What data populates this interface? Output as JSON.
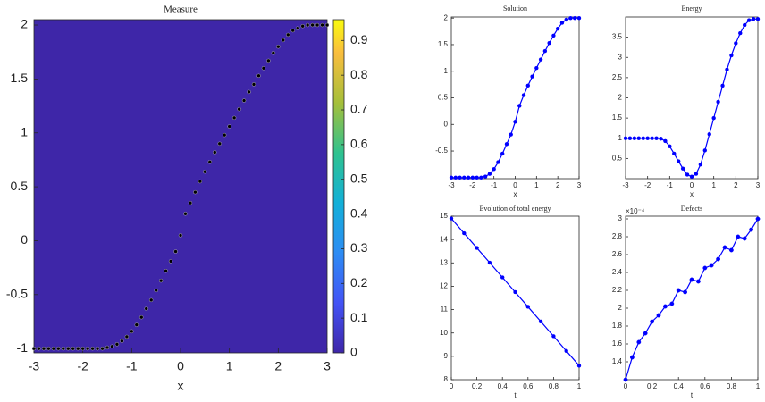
{
  "chart_data": [
    {
      "type": "scatter",
      "title": "Measure",
      "xlabel": "x",
      "background": "#3e26a8",
      "x": [
        -3.0,
        -2.9,
        -2.8,
        -2.7,
        -2.6,
        -2.5,
        -2.4,
        -2.3,
        -2.2,
        -2.1,
        -2.0,
        -1.9,
        -1.8,
        -1.7,
        -1.6,
        -1.5,
        -1.4,
        -1.3,
        -1.2,
        -1.1,
        -1.0,
        -0.9,
        -0.8,
        -0.7,
        -0.6,
        -0.5,
        -0.4,
        -0.3,
        -0.2,
        -0.1,
        0.0,
        0.1,
        0.2,
        0.3,
        0.4,
        0.5,
        0.6,
        0.7,
        0.8,
        0.9,
        1.0,
        1.1,
        1.2,
        1.3,
        1.4,
        1.5,
        1.6,
        1.7,
        1.8,
        1.9,
        2.0,
        2.1,
        2.2,
        2.3,
        2.4,
        2.5,
        2.6,
        2.7,
        2.8,
        2.9,
        3.0
      ],
      "series": [
        {
          "color": "#000000",
          "values": [
            -1,
            -1,
            -1,
            -1,
            -1,
            -1,
            -1,
            -1,
            -1,
            -1,
            -1,
            -1,
            -1,
            -1,
            -1,
            -0.99,
            -0.98,
            -0.96,
            -0.93,
            -0.89,
            -0.84,
            -0.78,
            -0.71,
            -0.63,
            -0.55,
            -0.46,
            -0.37,
            -0.28,
            -0.19,
            -0.1,
            0.05,
            0.25,
            0.35,
            0.45,
            0.55,
            0.64,
            0.73,
            0.82,
            0.9,
            0.98,
            1.06,
            1.14,
            1.22,
            1.3,
            1.38,
            1.45,
            1.53,
            1.6,
            1.67,
            1.74,
            1.8,
            1.86,
            1.91,
            1.95,
            1.97,
            1.99,
            2.0,
            2.0,
            2.0,
            2.0,
            2.0
          ]
        }
      ],
      "xlim": [
        -3,
        3
      ],
      "ylim": [
        -1.04,
        2.05
      ],
      "xticks": [
        -3,
        -2,
        -1,
        0,
        1,
        2,
        3
      ],
      "yticks": [
        -1,
        -0.5,
        0,
        0.5,
        1,
        1.5,
        2
      ],
      "colorbar": {
        "lim": [
          0,
          0.96
        ],
        "ticks": [
          0,
          0.1,
          0.2,
          0.3,
          0.4,
          0.5,
          0.6,
          0.7,
          0.8,
          0.9
        ]
      }
    },
    {
      "type": "line",
      "title": "Solution",
      "xlabel": "x",
      "x": [
        -3.0,
        -2.8,
        -2.6,
        -2.4,
        -2.2,
        -2.0,
        -1.8,
        -1.6,
        -1.4,
        -1.2,
        -1.0,
        -0.8,
        -0.6,
        -0.4,
        -0.2,
        0.0,
        0.2,
        0.4,
        0.6,
        0.8,
        1.0,
        1.2,
        1.4,
        1.6,
        1.8,
        2.0,
        2.2,
        2.4,
        2.6,
        2.8,
        3.0
      ],
      "series": [
        {
          "color": "#0000ff",
          "values": [
            -1,
            -1,
            -1,
            -1,
            -1,
            -1,
            -1,
            -1,
            -0.98,
            -0.93,
            -0.84,
            -0.71,
            -0.55,
            -0.37,
            -0.19,
            0.05,
            0.35,
            0.55,
            0.73,
            0.9,
            1.06,
            1.22,
            1.38,
            1.53,
            1.67,
            1.8,
            1.91,
            1.97,
            2.0,
            2.0,
            2.0
          ]
        }
      ],
      "xlim": [
        -3,
        3
      ],
      "ylim": [
        -1.02,
        2.02
      ],
      "xticks": [
        -3,
        -2,
        -1,
        0,
        1,
        2,
        3
      ],
      "yticks": [
        -0.5,
        0,
        0.5,
        1,
        1.5,
        2
      ]
    },
    {
      "type": "line",
      "title": "Energy",
      "xlabel": "x",
      "x": [
        -3.0,
        -2.8,
        -2.6,
        -2.4,
        -2.2,
        -2.0,
        -1.8,
        -1.6,
        -1.4,
        -1.2,
        -1.0,
        -0.8,
        -0.6,
        -0.4,
        -0.2,
        0.0,
        0.2,
        0.4,
        0.6,
        0.8,
        1.0,
        1.2,
        1.4,
        1.6,
        1.8,
        2.0,
        2.2,
        2.4,
        2.6,
        2.8,
        3.0
      ],
      "series": [
        {
          "color": "#0000ff",
          "values": [
            1,
            1,
            1,
            1,
            1,
            1,
            1,
            1,
            0.99,
            0.93,
            0.8,
            0.62,
            0.43,
            0.25,
            0.1,
            0.05,
            0.12,
            0.35,
            0.7,
            1.1,
            1.5,
            1.9,
            2.3,
            2.7,
            3.05,
            3.35,
            3.6,
            3.8,
            3.92,
            3.95,
            3.95
          ]
        }
      ],
      "xlim": [
        -3,
        3
      ],
      "ylim": [
        0,
        4
      ],
      "xticks": [
        -3,
        -2,
        -1,
        0,
        1,
        2,
        3
      ],
      "yticks": [
        0.5,
        1,
        1.5,
        2,
        2.5,
        3,
        3.5
      ]
    },
    {
      "type": "line",
      "title": "Evolution of total energy",
      "xlabel": "t",
      "x": [
        0,
        0.1,
        0.2,
        0.3,
        0.4,
        0.5,
        0.6,
        0.7,
        0.8,
        0.9,
        1
      ],
      "series": [
        {
          "color": "#0000ff",
          "values": [
            14.9,
            14.27,
            13.64,
            13.01,
            12.38,
            11.75,
            11.12,
            10.49,
            9.86,
            9.23,
            8.6
          ]
        }
      ],
      "xlim": [
        0,
        1
      ],
      "ylim": [
        8,
        15
      ],
      "xticks": [
        0,
        0.2,
        0.4,
        0.6,
        0.8,
        1
      ],
      "yticks": [
        8,
        9,
        10,
        11,
        12,
        13,
        14,
        15
      ]
    },
    {
      "type": "line",
      "title": "Defects",
      "xlabel": "t",
      "y_exponent": "×10⁻⁴",
      "x": [
        0,
        0.05,
        0.1,
        0.15,
        0.2,
        0.25,
        0.3,
        0.35,
        0.4,
        0.45,
        0.5,
        0.55,
        0.6,
        0.65,
        0.7,
        0.75,
        0.8,
        0.85,
        0.9,
        0.95,
        1
      ],
      "series": [
        {
          "color": "#0000ff",
          "values": [
            1.2,
            1.45,
            1.62,
            1.72,
            1.85,
            1.92,
            2.02,
            2.05,
            2.2,
            2.18,
            2.32,
            2.3,
            2.45,
            2.48,
            2.55,
            2.68,
            2.65,
            2.8,
            2.78,
            2.88,
            3.0
          ]
        }
      ],
      "xlim": [
        0,
        1
      ],
      "ylim": [
        1.2,
        3.03
      ],
      "xticks": [
        0,
        0.2,
        0.4,
        0.6,
        0.8,
        1
      ],
      "yticks": [
        1.4,
        1.6,
        1.8,
        2,
        2.2,
        2.4,
        2.6,
        2.8,
        3
      ]
    }
  ]
}
